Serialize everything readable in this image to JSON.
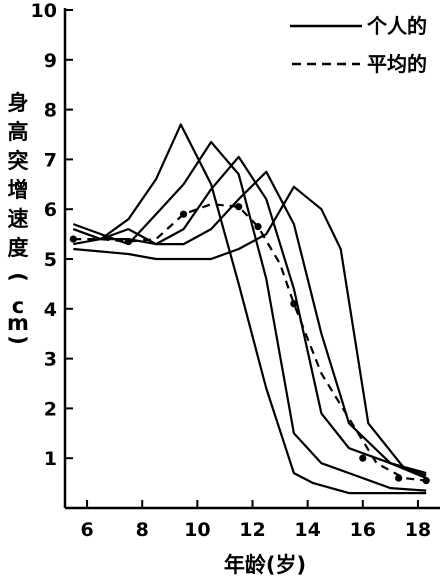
{
  "chart_data": {
    "type": "line",
    "title": "",
    "xlabel": "年龄(岁)",
    "ylabel": "身高突增速度(cm)",
    "xlim": [
      5.2,
      18.8
    ],
    "ylim": [
      0,
      10
    ],
    "xticks": [
      6,
      8,
      10,
      12,
      14,
      16,
      18
    ],
    "yticks": [
      1,
      2,
      3,
      4,
      5,
      6,
      7,
      8,
      9,
      10
    ],
    "grid": false,
    "legend_placement": "top-right",
    "legend": [
      {
        "label": "个人的",
        "style": "solid"
      },
      {
        "label": "平均的",
        "style": "dashed"
      }
    ],
    "series": [
      {
        "style": "solid",
        "x": [
          5.5,
          6.5,
          7.5,
          8.5,
          9.4,
          10.5,
          11.5,
          12.5,
          13.5,
          14.2,
          15.5,
          17.0,
          18.3
        ],
        "y": [
          5.6,
          5.4,
          5.8,
          6.6,
          7.7,
          6.5,
          4.5,
          2.4,
          0.7,
          0.5,
          0.3,
          0.3,
          0.3
        ]
      },
      {
        "style": "solid",
        "x": [
          5.5,
          6.5,
          7.5,
          8.5,
          9.5,
          10.5,
          11.5,
          12.5,
          13.5,
          14.5,
          15.5,
          17.0,
          18.3
        ],
        "y": [
          5.7,
          5.5,
          5.3,
          5.9,
          6.5,
          7.35,
          6.7,
          4.6,
          1.5,
          0.9,
          0.7,
          0.4,
          0.35
        ]
      },
      {
        "style": "solid",
        "x": [
          5.5,
          6.5,
          7.5,
          8.5,
          9.5,
          10.5,
          11.5,
          12.5,
          13.5,
          14.5,
          15.5,
          17.0,
          18.3
        ],
        "y": [
          5.3,
          5.4,
          5.6,
          5.3,
          5.6,
          6.4,
          7.05,
          6.2,
          4.4,
          1.9,
          1.2,
          0.9,
          0.6
        ]
      },
      {
        "style": "solid",
        "x": [
          5.5,
          6.5,
          7.5,
          8.5,
          9.5,
          10.5,
          11.5,
          12.5,
          13.5,
          14.5,
          15.5,
          17.0,
          18.3
        ],
        "y": [
          5.6,
          5.4,
          5.4,
          5.3,
          5.3,
          5.6,
          6.2,
          6.75,
          5.7,
          3.5,
          1.7,
          0.9,
          0.7
        ]
      },
      {
        "style": "solid",
        "x": [
          5.5,
          7.5,
          8.5,
          9.5,
          10.5,
          11.5,
          12.5,
          13.5,
          14.5,
          15.2,
          16.2,
          17.5,
          18.3
        ],
        "y": [
          5.2,
          5.1,
          5.0,
          5.0,
          5.0,
          5.2,
          5.5,
          6.45,
          6.0,
          5.2,
          1.7,
          0.8,
          0.65
        ]
      },
      {
        "style": "dashed",
        "x": [
          5.5,
          6.5,
          7.5,
          8.5,
          9.5,
          10.5,
          11.5,
          12.2,
          13.0,
          13.5,
          14.5,
          15.5,
          16.5,
          17.5,
          18.3
        ],
        "y": [
          5.4,
          5.4,
          5.35,
          5.4,
          5.9,
          6.1,
          6.05,
          5.65,
          4.9,
          4.1,
          2.7,
          1.8,
          0.9,
          0.6,
          0.55
        ],
        "markers": [
          [
            5.5,
            5.4
          ],
          [
            7.5,
            5.35
          ],
          [
            9.5,
            5.9
          ],
          [
            11.5,
            6.05
          ],
          [
            12.2,
            5.65
          ],
          [
            13.5,
            4.1
          ],
          [
            16.0,
            1.0
          ],
          [
            17.3,
            0.6
          ],
          [
            18.3,
            0.55
          ]
        ]
      }
    ]
  }
}
